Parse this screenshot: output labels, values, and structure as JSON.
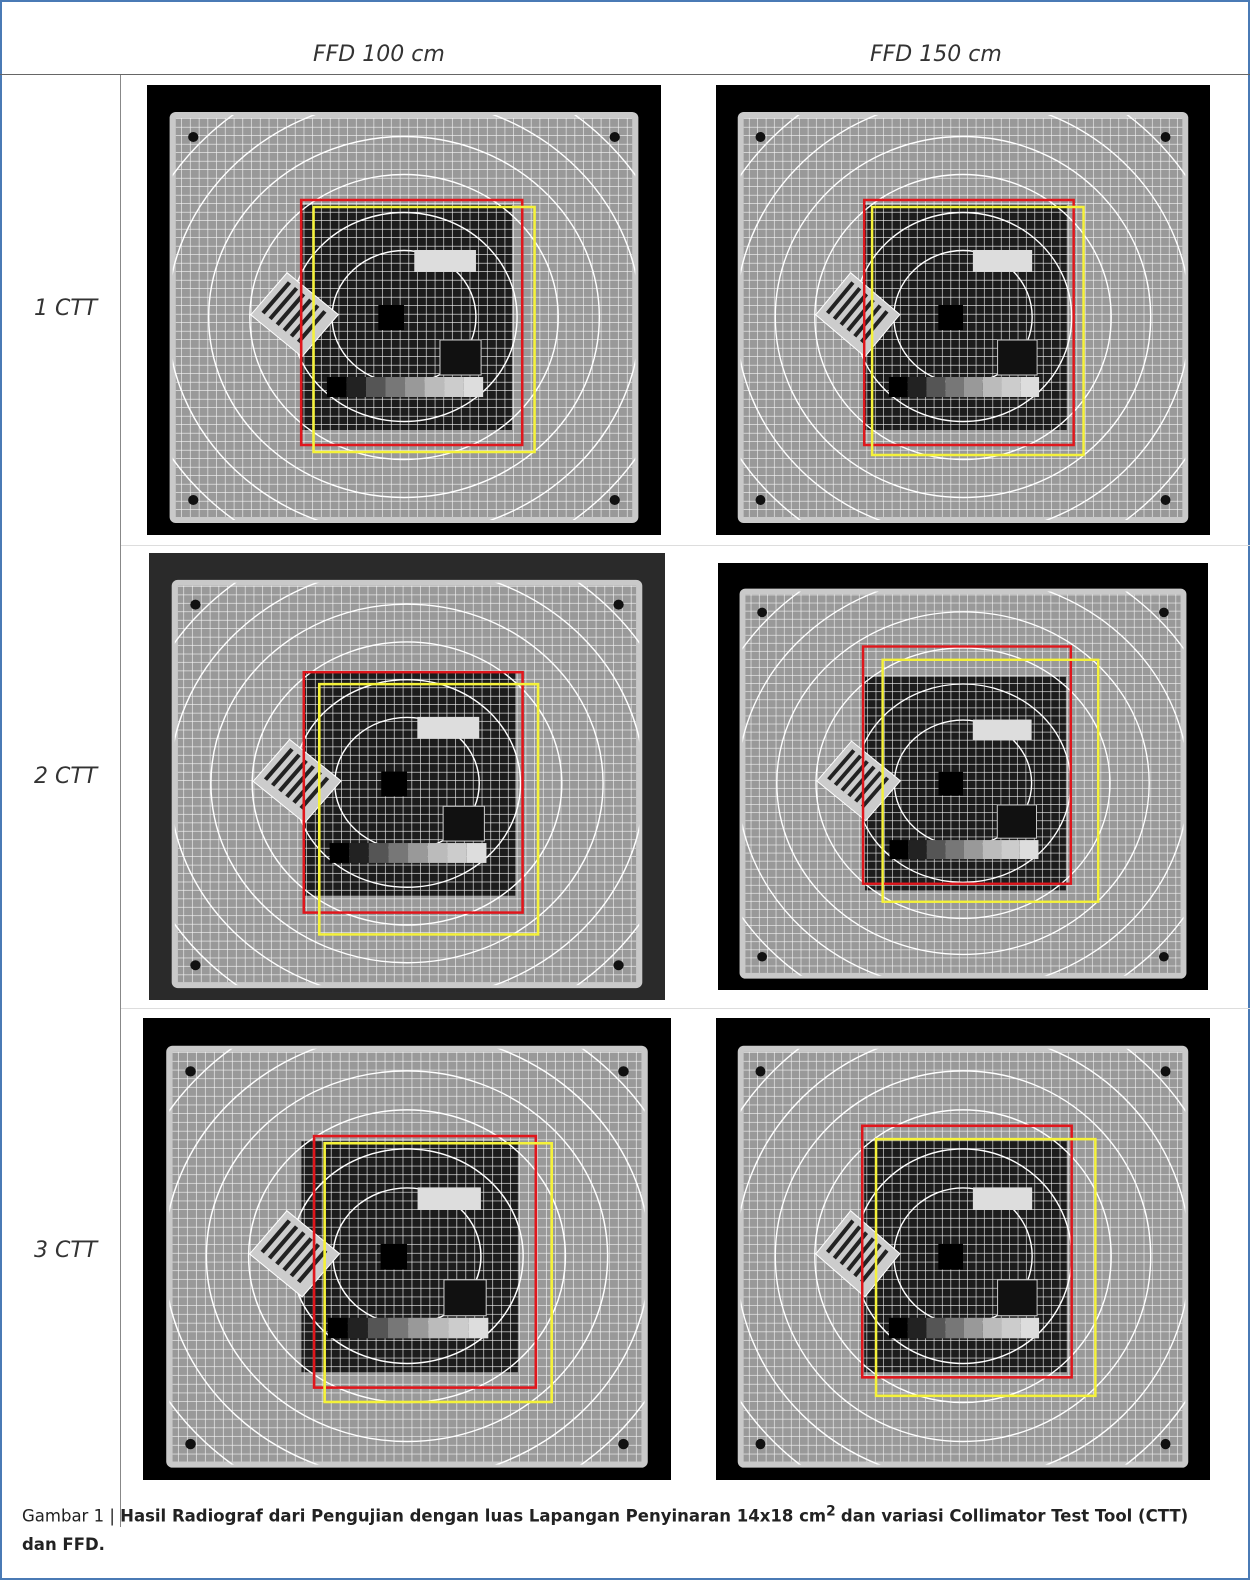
{
  "header": {
    "columns": [
      "FFD 100 cm",
      "FFD 150 cm"
    ]
  },
  "rows": [
    {
      "label": "1 CTT"
    },
    {
      "label": "2 CTT"
    },
    {
      "label": "3 CTT"
    }
  ],
  "caption": {
    "label": "Gambar 1 |",
    "title": "Hasil Radiograf dari Pengujian dengan luas Lapangan Penyinaran 14x18 cm",
    "superscript": "2",
    "title_end": "dan variasi Collimator Test Tool (CTT) dan FFD."
  }
}
